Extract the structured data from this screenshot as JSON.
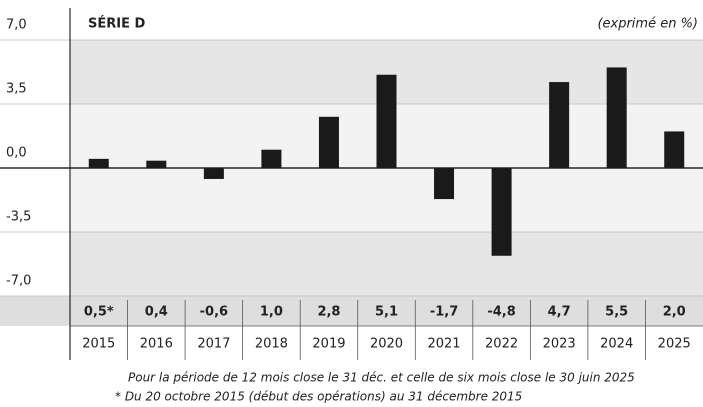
{
  "chart_data": {
    "type": "bar",
    "title": "SÉRIE D",
    "subtitle": "(exprimé en %)",
    "categories": [
      "2015",
      "2016",
      "2017",
      "2018",
      "2019",
      "2020",
      "2021",
      "2022",
      "2023",
      "2024",
      "2025"
    ],
    "values": [
      0.5,
      0.4,
      -0.6,
      1.0,
      2.8,
      5.1,
      -1.7,
      -4.8,
      4.7,
      5.5,
      2.0
    ],
    "value_labels": [
      "0,5*",
      "0,4",
      "-0,6",
      "1,0",
      "2,8",
      "5,1",
      "-1,7",
      "-4,8",
      "4,7",
      "5,5",
      "2,0"
    ],
    "color": "#1a1a1a",
    "ylim": [
      -7,
      7
    ],
    "yticks": [
      {
        "value": 7,
        "label": "7,0"
      },
      {
        "value": 3.5,
        "label": "3,5"
      },
      {
        "value": 0,
        "label": "0,0"
      },
      {
        "value": -3.5,
        "label": "-3,5"
      },
      {
        "value": -7,
        "label": "-7,0"
      }
    ],
    "notes": [
      "Pour la période de 12 mois close le 31 déc. et celle de six mois close le 30 juin 2025",
      "* Du 20 octobre 2015 (début des opérations) au 31 décembre 2015"
    ]
  }
}
